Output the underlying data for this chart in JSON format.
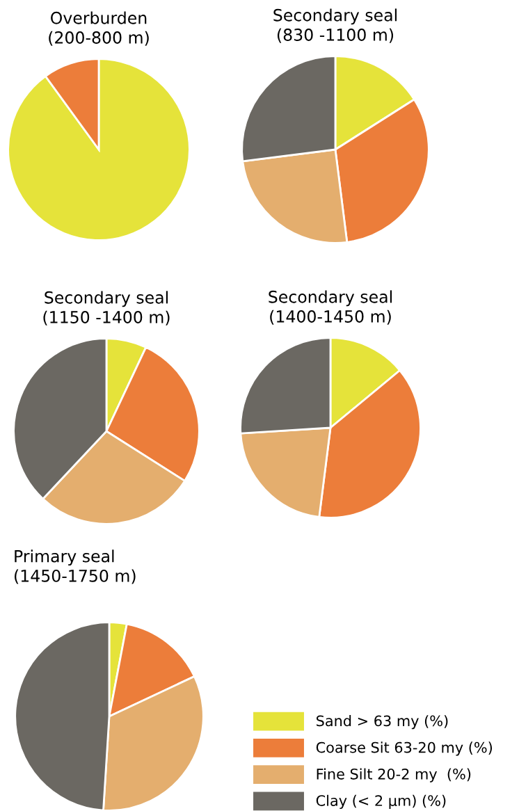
{
  "chart_data": [
    {
      "type": "pie",
      "title": "Overburden\n(200-800 m)",
      "categories": [
        null,
        null
      ],
      "values": [
        90,
        10
      ],
      "colors": [
        "#e5e33a",
        "#ec7d3a"
      ]
    },
    {
      "type": "pie",
      "title": "Secondary seal\n(830 -1100 m)",
      "categories": [
        null,
        null,
        null,
        null
      ],
      "values": [
        16,
        32,
        25,
        27
      ],
      "colors": [
        "#e5e33a",
        "#ec7d3a",
        "#e4ae6e",
        "#6b6862"
      ]
    },
    {
      "type": "pie",
      "title": "Secondary seal\n(1150 -1400 m)",
      "categories": [
        null,
        null,
        null,
        null
      ],
      "values": [
        7,
        27,
        28,
        38
      ],
      "colors": [
        "#e5e33a",
        "#ec7d3a",
        "#e4ae6e",
        "#6b6862"
      ]
    },
    {
      "type": "pie",
      "title": "Secondary seal\n(1400-1450 m)",
      "categories": [
        null,
        null,
        null,
        null
      ],
      "values": [
        14,
        38,
        22,
        26
      ],
      "colors": [
        "#e5e33a",
        "#ec7d3a",
        "#e4ae6e",
        "#6b6862"
      ]
    },
    {
      "type": "pie",
      "title": "Primary seal\n(1450-1750 m)",
      "categories": [
        "Sand > 63 my (%)",
        "Coarse Sit 63-20 my (%)",
        "Fine Silt 20-2 my  (%)",
        "Clay (< 2 µm) (%)"
      ],
      "values": [
        3,
        15,
        33,
        49
      ],
      "colors": [
        "#e5e33a",
        "#ec7d3a",
        "#e4ae6e",
        "#6b6862"
      ],
      "legend": "bottom right"
    }
  ]
}
